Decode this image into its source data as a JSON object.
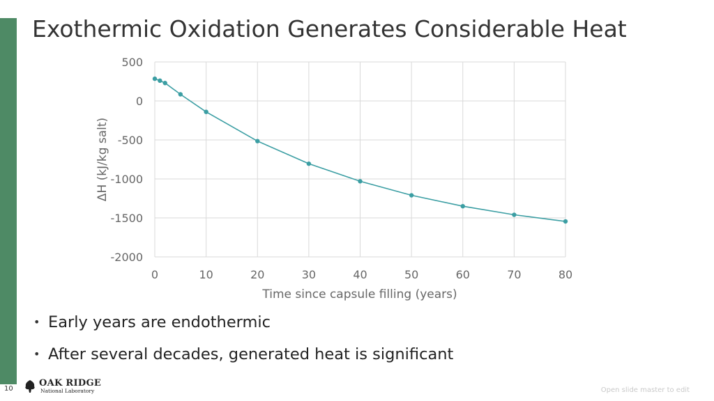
{
  "slide": {
    "title": "Exothermic Oxidation Generates Considerable Heat",
    "bullets": [
      "Early years are endothermic",
      "After several decades, generated heat is significant"
    ],
    "bullet_glyph": "•",
    "page_number": "10",
    "logo": {
      "line1": "OAK RIDGE",
      "line2": "National Laboratory",
      "icon": "oak-tree-icon"
    },
    "footer_note": "Open slide master to edit",
    "colors": {
      "sidebar": "#4e8a65",
      "series": "#3b9ea3",
      "grid": "#d9d9d9"
    }
  },
  "chart_data": {
    "type": "line",
    "title": "",
    "xlabel": "Time since capsule filling (years)",
    "ylabel": "ΔH (kJ/kg salt)",
    "xlim": [
      0,
      80
    ],
    "ylim": [
      -2000,
      500
    ],
    "xticks": [
      0,
      10,
      20,
      30,
      40,
      50,
      60,
      70,
      80
    ],
    "yticks": [
      500,
      0,
      -500,
      -1000,
      -1500,
      -2000
    ],
    "grid": true,
    "legend": "none",
    "series": [
      {
        "name": "ΔH",
        "x": [
          0,
          1,
          2,
          5,
          10,
          20,
          30,
          40,
          50,
          60,
          70,
          80
        ],
        "y": [
          285,
          260,
          230,
          85,
          -140,
          -515,
          -805,
          -1030,
          -1210,
          -1350,
          -1460,
          -1545
        ]
      }
    ]
  }
}
